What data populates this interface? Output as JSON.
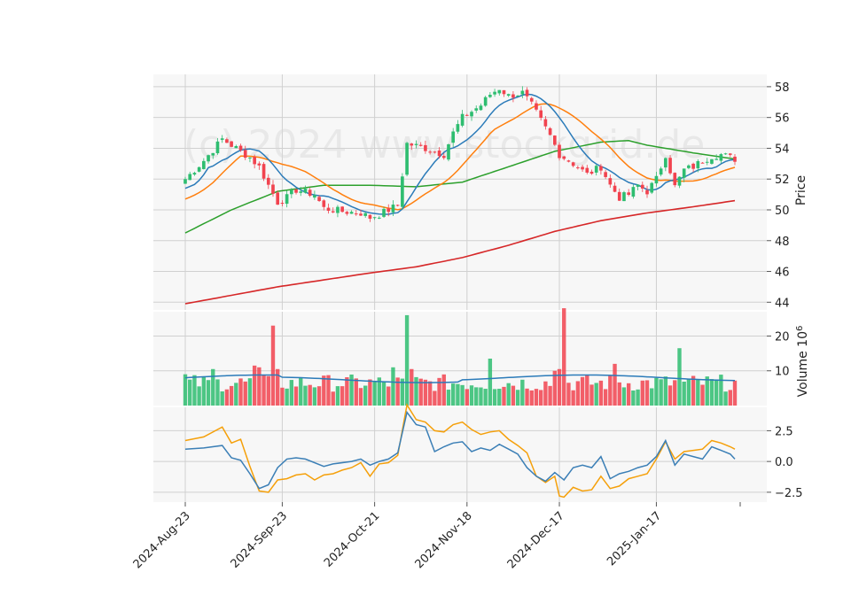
{
  "watermark": "(c) 2024 www.stockgrid.de",
  "chart_data": {
    "type": "candlestick",
    "x_tick_labels": [
      "2024-Aug-23",
      "2024-Sep-23",
      "2024-Oct-21",
      "2024-Nov-18",
      "2024-Dec-17",
      "2025-Jan-17"
    ],
    "x_tick_indices": [
      0,
      21,
      41,
      61,
      81,
      102
    ],
    "n_bars": 120,
    "up_color": "#2ebd70",
    "down_color": "#f1434f",
    "price_panel": {
      "ylabel": "Price",
      "ylim": [
        43.5,
        58.8
      ],
      "yticks": [
        44,
        46,
        48,
        50,
        52,
        54,
        56,
        58
      ],
      "keypoints": [
        [
          0,
          52.0
        ],
        [
          4,
          53.2
        ],
        [
          8,
          54.6
        ],
        [
          12,
          53.8
        ],
        [
          14,
          53.4
        ],
        [
          16,
          52.8
        ],
        [
          18,
          51.6
        ],
        [
          20,
          50.5
        ],
        [
          22,
          50.8
        ],
        [
          24,
          51.3
        ],
        [
          28,
          51.0
        ],
        [
          30,
          50.1
        ],
        [
          34,
          49.9
        ],
        [
          38,
          49.8
        ],
        [
          40,
          49.5
        ],
        [
          42,
          49.7
        ],
        [
          46,
          50.3
        ],
        [
          48,
          54.3
        ],
        [
          52,
          54.0
        ],
        [
          56,
          53.6
        ],
        [
          58,
          55.0
        ],
        [
          60,
          56.0
        ],
        [
          64,
          56.8
        ],
        [
          66,
          57.5
        ],
        [
          68,
          57.9
        ],
        [
          70,
          57.4
        ],
        [
          73,
          57.6
        ],
        [
          75,
          56.8
        ],
        [
          77,
          55.8
        ],
        [
          79,
          54.8
        ],
        [
          81,
          53.6
        ],
        [
          84,
          53.0
        ],
        [
          87,
          52.3
        ],
        [
          90,
          52.8
        ],
        [
          92,
          51.6
        ],
        [
          94,
          50.8
        ],
        [
          96,
          51.0
        ],
        [
          98,
          51.6
        ],
        [
          100,
          51.2
        ],
        [
          102,
          52.0
        ],
        [
          104,
          53.6
        ],
        [
          106,
          51.5
        ],
        [
          108,
          52.6
        ],
        [
          110,
          52.8
        ],
        [
          112,
          53.2
        ],
        [
          114,
          53.5
        ],
        [
          116,
          53.6
        ],
        [
          118,
          53.4
        ],
        [
          119,
          53.3
        ]
      ],
      "ma_short": {
        "color": "#2b7bb9",
        "start": 51.4,
        "end": 53.3
      },
      "ma_mid": {
        "color": "#ff7f0e",
        "start": 50.7,
        "end": 52.6
      },
      "ma_long": {
        "color": "#2ca02c",
        "points": [
          [
            0,
            48.5
          ],
          [
            10,
            50.0
          ],
          [
            20,
            51.2
          ],
          [
            30,
            51.6
          ],
          [
            40,
            51.6
          ],
          [
            50,
            51.5
          ],
          [
            60,
            51.8
          ],
          [
            70,
            52.8
          ],
          [
            80,
            53.8
          ],
          [
            90,
            54.4
          ],
          [
            96,
            54.5
          ],
          [
            100,
            54.2
          ],
          [
            110,
            53.7
          ],
          [
            119,
            53.3
          ]
        ]
      },
      "ma_200": {
        "color": "#d62728",
        "points": [
          [
            0,
            43.9
          ],
          [
            20,
            45.0
          ],
          [
            40,
            45.9
          ],
          [
            50,
            46.3
          ],
          [
            60,
            46.9
          ],
          [
            70,
            47.7
          ],
          [
            80,
            48.6
          ],
          [
            90,
            49.3
          ],
          [
            100,
            49.8
          ],
          [
            110,
            50.2
          ],
          [
            119,
            50.6
          ]
        ]
      }
    },
    "volume_panel": {
      "ylabel": "Volume  10",
      "ylabel_exponent": "6",
      "ylim": [
        0,
        27
      ],
      "yticks": [
        10,
        20
      ],
      "avg_volume": 8,
      "ma_color": "#2b7bb9",
      "spikes": [
        [
          19,
          23.0
        ],
        [
          48,
          26.0
        ],
        [
          49,
          10.5
        ],
        [
          66,
          13.5
        ],
        [
          82,
          28.0
        ],
        [
          93,
          12.0
        ],
        [
          107,
          16.5
        ],
        [
          80,
          10.0
        ],
        [
          81,
          10.5
        ],
        [
          0,
          9.0
        ],
        [
          6,
          10.5
        ],
        [
          15,
          11.5
        ],
        [
          16,
          11.0
        ],
        [
          20,
          10.5
        ],
        [
          45,
          11.0
        ]
      ]
    },
    "indicator_panel": {
      "ylim": [
        -3.3,
        4.4
      ],
      "yticks": [
        -2.5,
        0.0,
        2.5
      ],
      "ytick_labels": [
        "−2.5",
        "0.0",
        "2.5"
      ],
      "line1": {
        "color": "#3b7fb6",
        "keypoints": [
          [
            0,
            1.0
          ],
          [
            4,
            1.1
          ],
          [
            8,
            1.3
          ],
          [
            10,
            0.3
          ],
          [
            12,
            0.1
          ],
          [
            14,
            -1.0
          ],
          [
            16,
            -2.2
          ],
          [
            18,
            -1.9
          ],
          [
            20,
            -0.5
          ],
          [
            22,
            0.2
          ],
          [
            24,
            0.3
          ],
          [
            26,
            0.2
          ],
          [
            30,
            -0.4
          ],
          [
            32,
            -0.2
          ],
          [
            36,
            0.0
          ],
          [
            38,
            0.2
          ],
          [
            40,
            -0.3
          ],
          [
            42,
            0.0
          ],
          [
            44,
            0.2
          ],
          [
            46,
            0.7
          ],
          [
            48,
            4.0
          ],
          [
            50,
            3.0
          ],
          [
            52,
            2.8
          ],
          [
            54,
            0.8
          ],
          [
            56,
            1.2
          ],
          [
            58,
            1.5
          ],
          [
            60,
            1.6
          ],
          [
            62,
            0.8
          ],
          [
            64,
            1.1
          ],
          [
            66,
            0.9
          ],
          [
            68,
            1.4
          ],
          [
            70,
            1.0
          ],
          [
            72,
            0.6
          ],
          [
            74,
            -0.5
          ],
          [
            76,
            -1.2
          ],
          [
            78,
            -1.6
          ],
          [
            80,
            -0.9
          ],
          [
            82,
            -1.5
          ],
          [
            84,
            -0.5
          ],
          [
            86,
            -0.3
          ],
          [
            88,
            -0.5
          ],
          [
            90,
            0.4
          ],
          [
            92,
            -1.4
          ],
          [
            94,
            -1.0
          ],
          [
            96,
            -0.8
          ],
          [
            98,
            -0.5
          ],
          [
            100,
            -0.3
          ],
          [
            102,
            0.4
          ],
          [
            104,
            1.7
          ],
          [
            106,
            -0.3
          ],
          [
            108,
            0.6
          ],
          [
            110,
            0.4
          ],
          [
            112,
            0.2
          ],
          [
            114,
            1.2
          ],
          [
            116,
            0.9
          ],
          [
            118,
            0.6
          ],
          [
            119,
            0.2
          ]
        ]
      },
      "line2": {
        "color": "#f5a00a",
        "keypoints": [
          [
            0,
            1.7
          ],
          [
            4,
            2.0
          ],
          [
            8,
            2.8
          ],
          [
            10,
            1.5
          ],
          [
            12,
            1.8
          ],
          [
            14,
            -0.4
          ],
          [
            16,
            -2.4
          ],
          [
            18,
            -2.5
          ],
          [
            20,
            -1.5
          ],
          [
            22,
            -1.4
          ],
          [
            24,
            -1.1
          ],
          [
            26,
            -1.0
          ],
          [
            28,
            -1.5
          ],
          [
            30,
            -1.1
          ],
          [
            32,
            -1.0
          ],
          [
            34,
            -0.7
          ],
          [
            36,
            -0.5
          ],
          [
            38,
            -0.1
          ],
          [
            40,
            -1.2
          ],
          [
            42,
            -0.2
          ],
          [
            44,
            -0.1
          ],
          [
            46,
            0.5
          ],
          [
            48,
            4.6
          ],
          [
            50,
            3.4
          ],
          [
            52,
            3.2
          ],
          [
            54,
            2.5
          ],
          [
            56,
            2.4
          ],
          [
            58,
            3.0
          ],
          [
            60,
            3.2
          ],
          [
            62,
            2.6
          ],
          [
            64,
            2.2
          ],
          [
            66,
            2.4
          ],
          [
            68,
            2.5
          ],
          [
            70,
            1.8
          ],
          [
            72,
            1.3
          ],
          [
            74,
            0.7
          ],
          [
            76,
            -1.2
          ],
          [
            78,
            -1.7
          ],
          [
            80,
            -1.2
          ],
          [
            81,
            -2.8
          ],
          [
            82,
            -2.9
          ],
          [
            84,
            -2.1
          ],
          [
            86,
            -2.4
          ],
          [
            88,
            -2.3
          ],
          [
            90,
            -1.2
          ],
          [
            92,
            -2.2
          ],
          [
            94,
            -2.0
          ],
          [
            96,
            -1.4
          ],
          [
            98,
            -1.2
          ],
          [
            100,
            -1.0
          ],
          [
            102,
            0.2
          ],
          [
            104,
            1.6
          ],
          [
            106,
            0.2
          ],
          [
            108,
            0.8
          ],
          [
            110,
            0.9
          ],
          [
            112,
            1.0
          ],
          [
            114,
            1.7
          ],
          [
            116,
            1.5
          ],
          [
            118,
            1.2
          ],
          [
            119,
            1.0
          ]
        ]
      }
    }
  }
}
